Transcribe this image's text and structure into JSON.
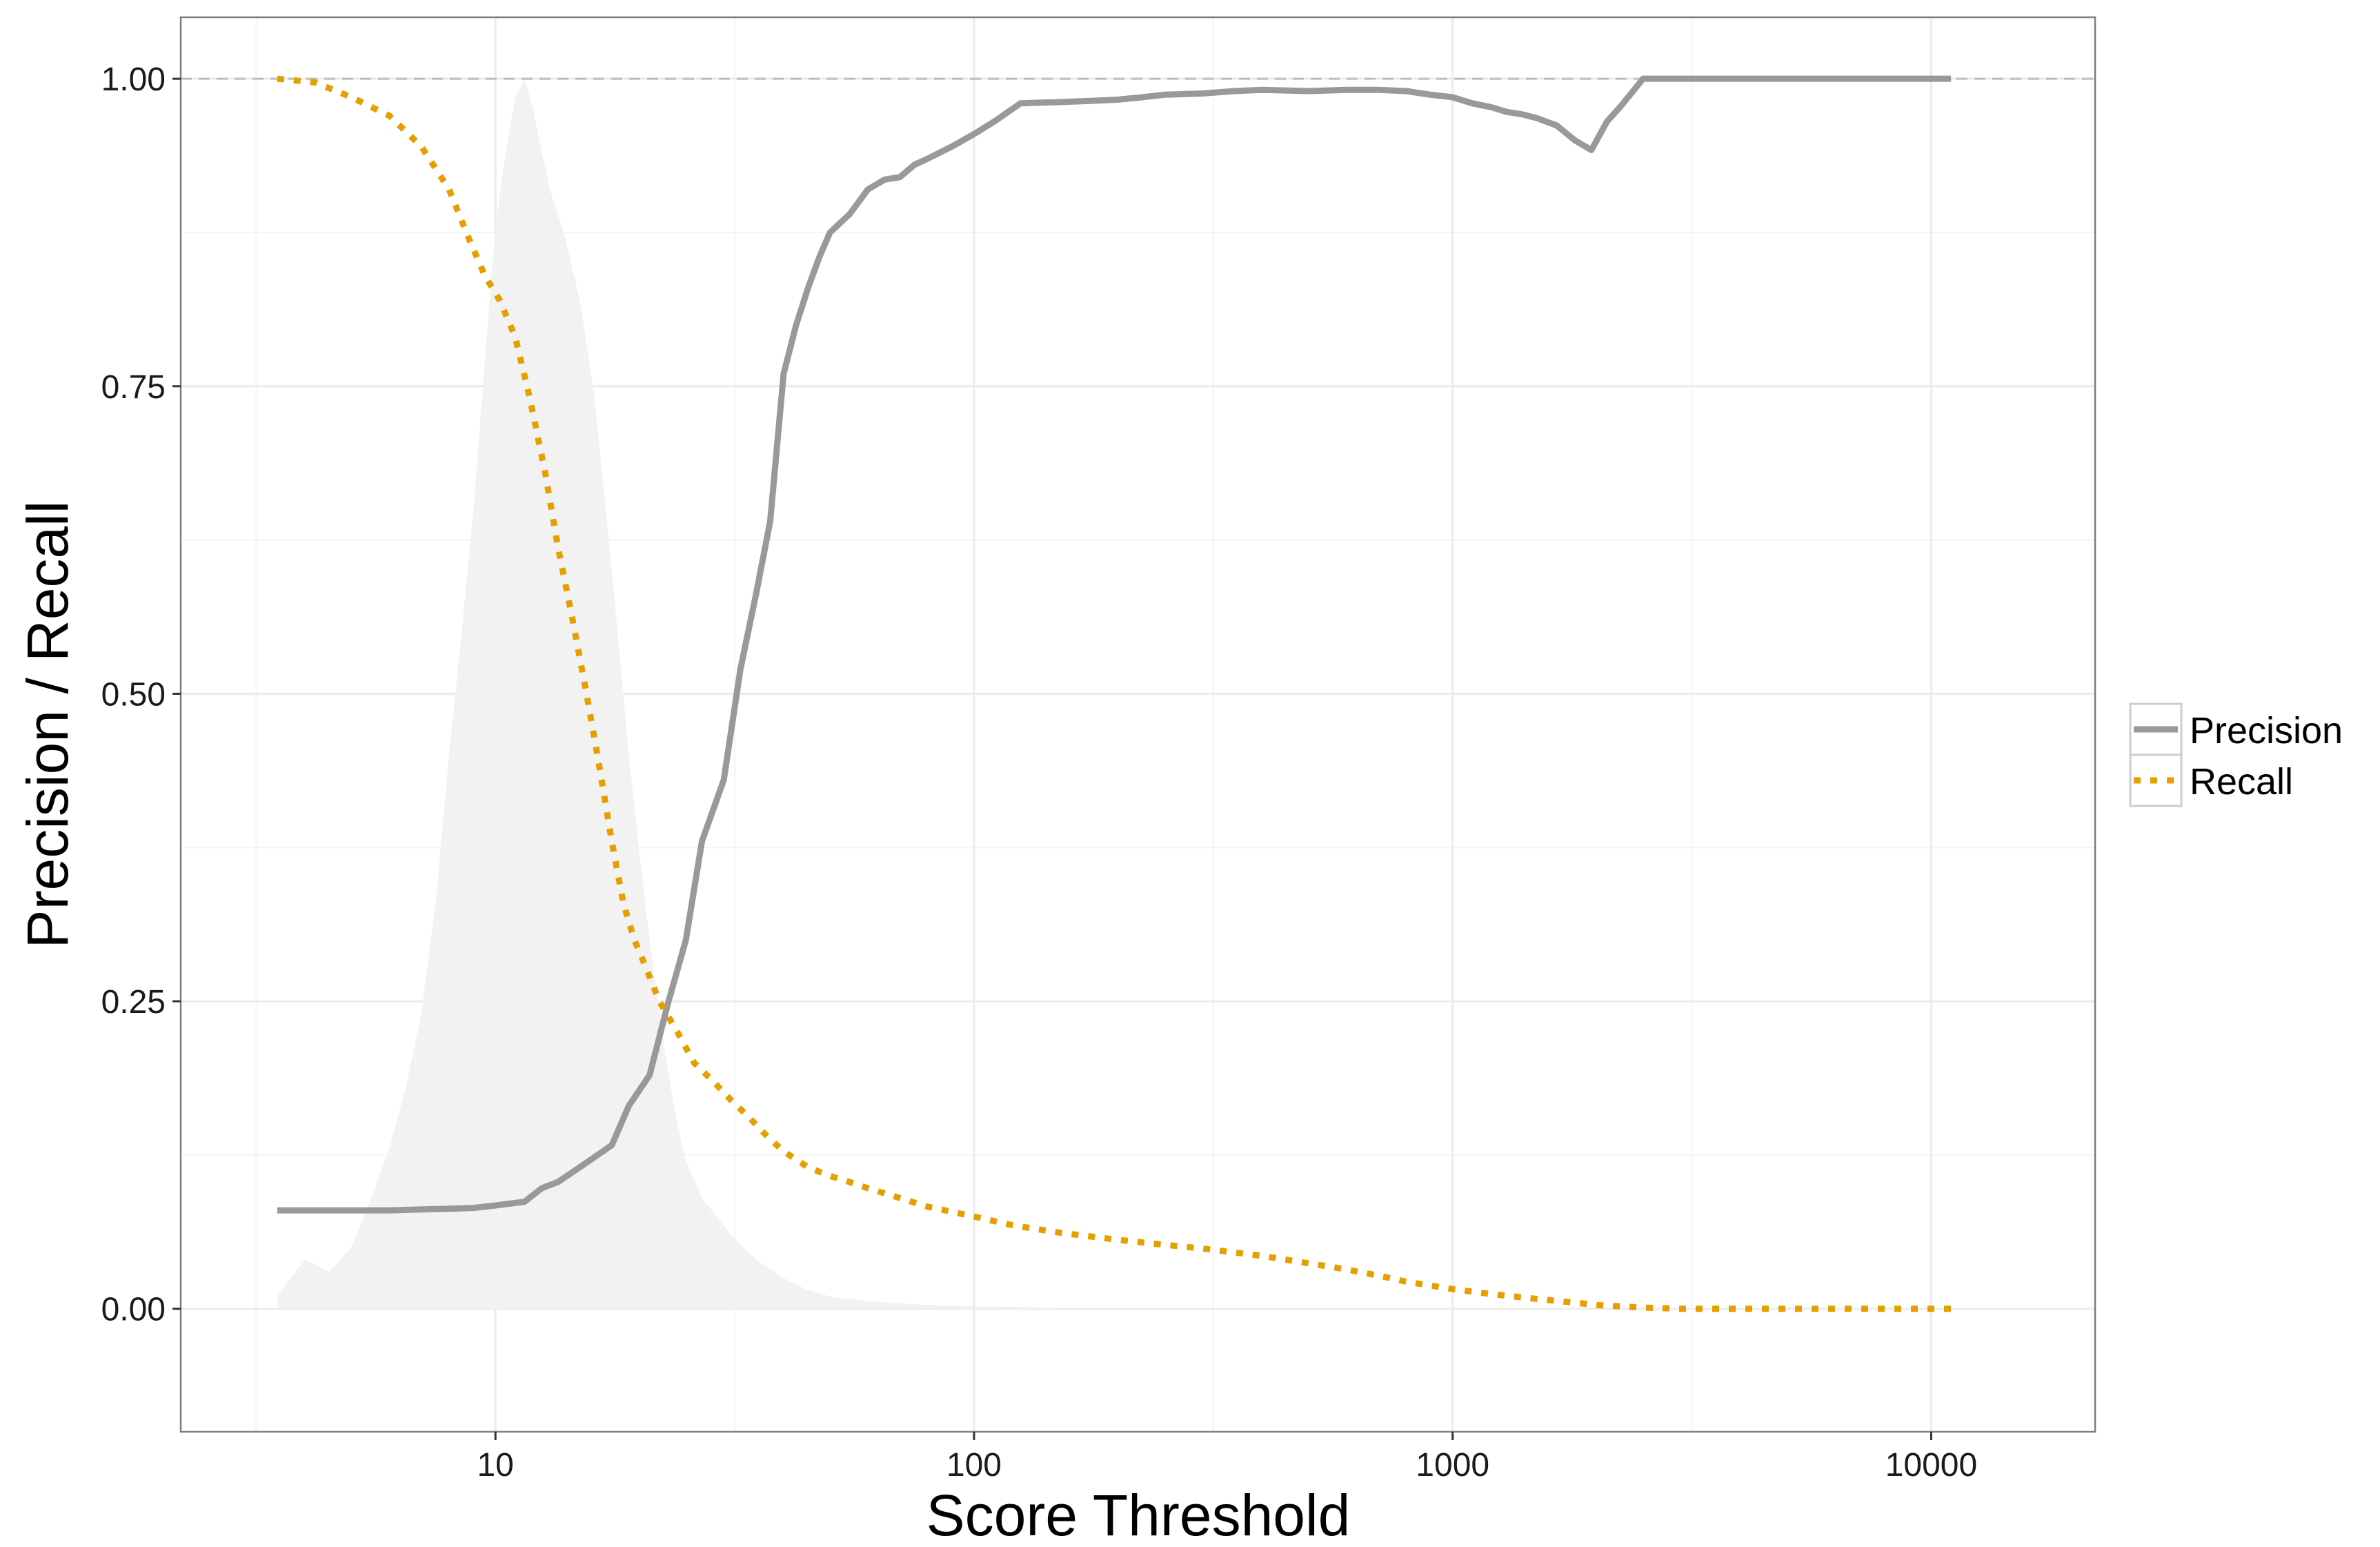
{
  "chart_data": {
    "type": "line",
    "title": "",
    "xlabel": "Score Threshold",
    "ylabel": "Precision / Recall",
    "x_scale": "log10",
    "xlim": [
      2.2,
      22000
    ],
    "ylim": [
      -0.1,
      1.05
    ],
    "x_ticks": [
      10,
      100,
      1000,
      10000
    ],
    "x_tick_labels": [
      "10",
      "100",
      "1000",
      "10000"
    ],
    "y_ticks": [
      0,
      0.25,
      0.5,
      0.75,
      1
    ],
    "y_tick_labels": [
      "0.00",
      "0.25",
      "0.50",
      "0.75",
      "1.00"
    ],
    "grid": true,
    "legend_position": "right",
    "reference_line": {
      "y": 1.0,
      "style": "dashed",
      "color": "#bdbdbd"
    },
    "series": [
      {
        "name": "Precision",
        "style": "solid",
        "color": "#999999",
        "x": [
          3.5,
          4.5,
          6,
          7.5,
          9,
          10,
          11.5,
          12.5,
          13.5,
          15,
          17.5,
          19,
          21,
          23,
          25,
          27,
          30,
          32.5,
          35,
          37.5,
          40,
          42.5,
          45,
          47.5,
          50,
          55,
          60,
          65,
          70,
          75,
          80,
          90,
          100,
          110,
          125,
          150,
          175,
          200,
          225,
          250,
          300,
          350,
          400,
          500,
          600,
          700,
          800,
          900,
          1000,
          1100,
          1200,
          1300,
          1400,
          1500,
          1650,
          1800,
          1950,
          2100,
          2250,
          2500,
          3000,
          5000,
          11000
        ],
        "values": [
          0.08,
          0.08,
          0.08,
          0.081,
          0.082,
          0.084,
          0.087,
          0.098,
          0.103,
          0.115,
          0.133,
          0.165,
          0.19,
          0.25,
          0.3,
          0.38,
          0.43,
          0.52,
          0.58,
          0.64,
          0.76,
          0.8,
          0.83,
          0.855,
          0.875,
          0.89,
          0.91,
          0.918,
          0.92,
          0.93,
          0.935,
          0.945,
          0.955,
          0.965,
          0.98,
          0.981,
          0.982,
          0.983,
          0.985,
          0.987,
          0.988,
          0.99,
          0.991,
          0.99,
          0.991,
          0.991,
          0.99,
          0.987,
          0.985,
          0.98,
          0.977,
          0.973,
          0.971,
          0.968,
          0.962,
          0.95,
          0.942,
          0.965,
          0.978,
          1.0,
          1.0,
          1.0,
          1.0
        ]
      },
      {
        "name": "Recall",
        "style": "dotted",
        "color": "#E69F00",
        "x": [
          3.5,
          4.2,
          5,
          6,
          7,
          8,
          8.8,
          9.5,
          10.2,
          11,
          11.8,
          12.7,
          13.5,
          14.5,
          15.5,
          16.5,
          17.5,
          18.5,
          19.5,
          20.5,
          22,
          24,
          26,
          28.5,
          31,
          34,
          37,
          40,
          45,
          50,
          55,
          60,
          70,
          80,
          100,
          120,
          150,
          200,
          250,
          300,
          400,
          500,
          600,
          700,
          800,
          1000,
          1200,
          1500,
          1800,
          2000,
          2500,
          3000,
          4000,
          5000,
          7000,
          10000,
          11000
        ],
        "values": [
          1.0,
          0.997,
          0.985,
          0.97,
          0.945,
          0.91,
          0.87,
          0.84,
          0.82,
          0.79,
          0.74,
          0.68,
          0.62,
          0.56,
          0.5,
          0.44,
          0.38,
          0.33,
          0.3,
          0.28,
          0.25,
          0.225,
          0.2,
          0.185,
          0.17,
          0.155,
          0.14,
          0.128,
          0.115,
          0.108,
          0.103,
          0.098,
          0.09,
          0.083,
          0.075,
          0.068,
          0.062,
          0.056,
          0.052,
          0.049,
          0.043,
          0.037,
          0.032,
          0.027,
          0.022,
          0.016,
          0.012,
          0.008,
          0.005,
          0.003,
          0.001,
          0.0,
          0.0,
          0.0,
          0.0,
          0.0,
          0.0
        ]
      }
    ],
    "density": {
      "color": "#f2f2f2",
      "x": [
        3.5,
        4.0,
        4.5,
        5.0,
        5.5,
        6.0,
        6.5,
        7.0,
        7.5,
        8.0,
        8.5,
        9.0,
        9.5,
        10.0,
        10.5,
        11.0,
        11.5,
        12.0,
        12.5,
        13.0,
        14.0,
        15.0,
        16.0,
        17.0,
        18.0,
        19.0,
        20.0,
        21.0,
        22.0,
        23.0,
        24.0,
        25.0,
        27.0,
        29.0,
        31.0,
        35.0,
        40.0,
        45.0,
        50.0,
        60.0,
        80.0,
        100.0,
        150.0
      ],
      "values": [
        0.01,
        0.04,
        0.03,
        0.05,
        0.09,
        0.13,
        0.18,
        0.24,
        0.33,
        0.45,
        0.55,
        0.65,
        0.77,
        0.88,
        0.94,
        0.985,
        1.0,
        0.975,
        0.94,
        0.91,
        0.87,
        0.82,
        0.75,
        0.65,
        0.55,
        0.45,
        0.37,
        0.3,
        0.24,
        0.19,
        0.15,
        0.12,
        0.09,
        0.075,
        0.06,
        0.04,
        0.025,
        0.015,
        0.01,
        0.006,
        0.003,
        0.002,
        0.001
      ]
    }
  }
}
